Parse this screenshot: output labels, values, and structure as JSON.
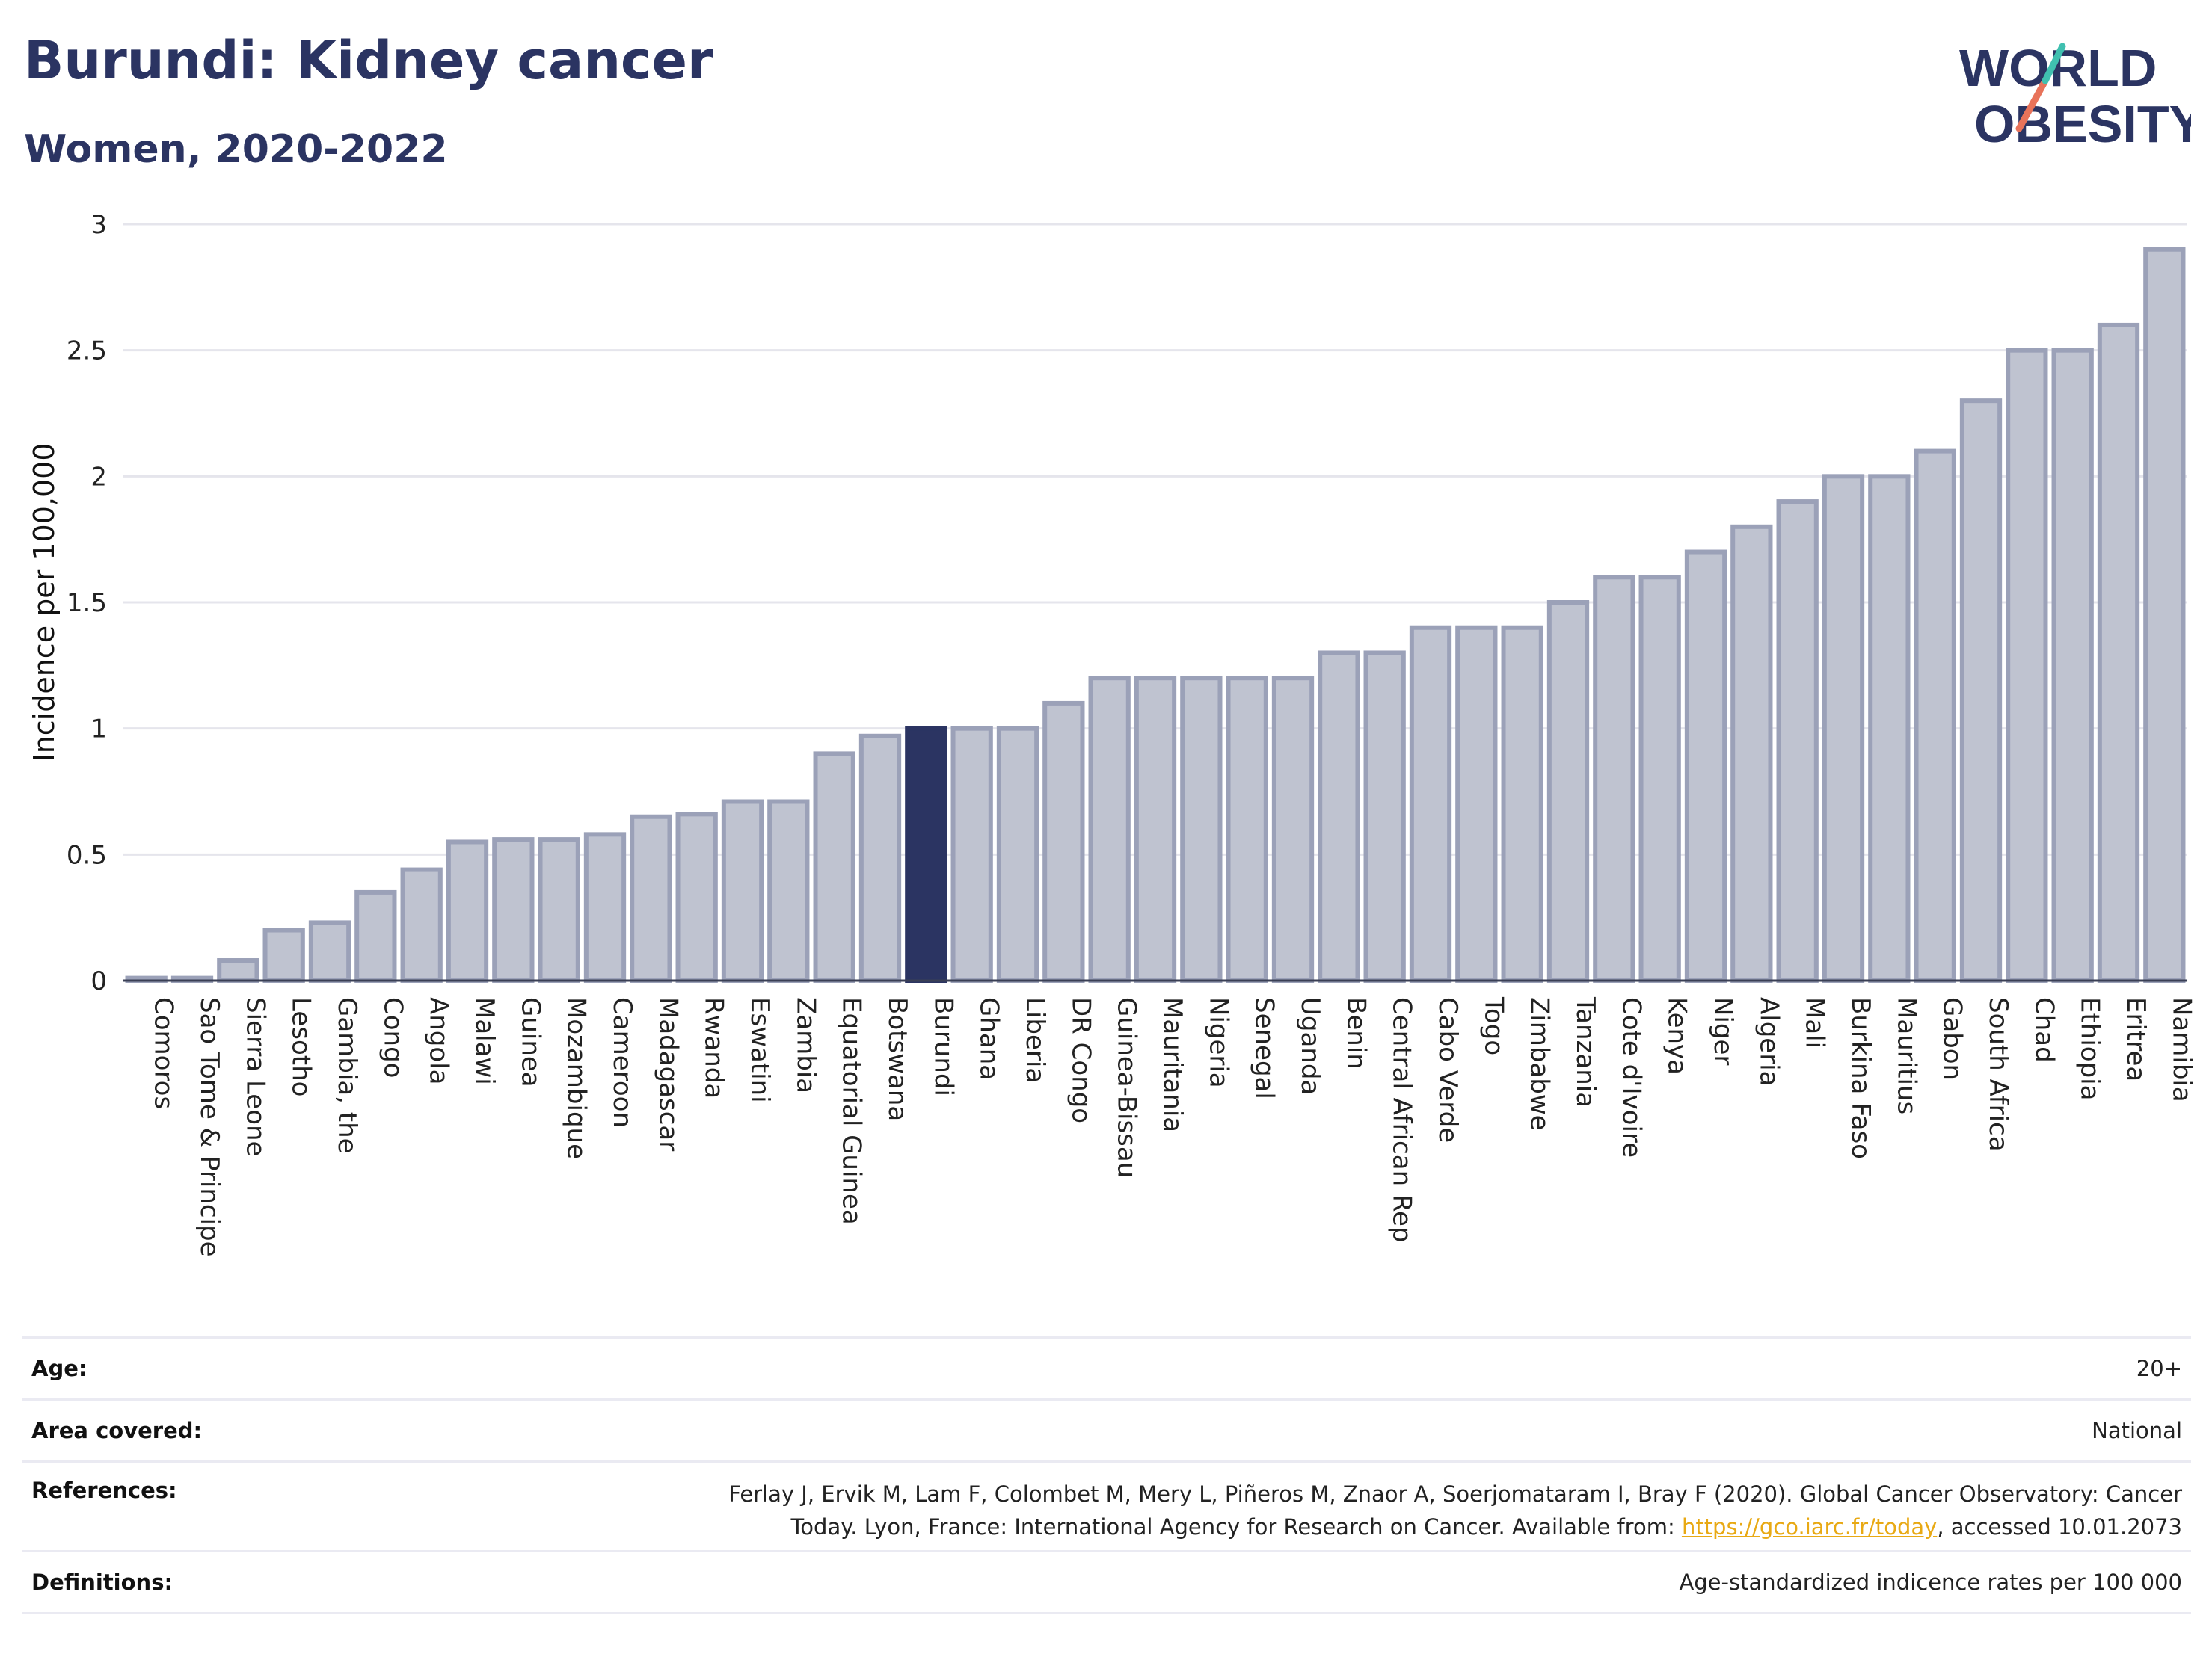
{
  "header": {
    "title": "Burundi: Kidney cancer",
    "subtitle": "Women, 2020-2022"
  },
  "logo": {
    "line1": "WORLD",
    "line2": "OBESITY",
    "stripe_colors": [
      "#40c0b0",
      "#e8735a"
    ]
  },
  "colors": {
    "bar_fill": "#bfc3d0",
    "bar_stroke": "#9ba1b8",
    "highlight_fill": "#2b3462",
    "grid": "#e5e5ec",
    "title": "#2b3462",
    "link": "#e8a914"
  },
  "chart_data": {
    "type": "bar",
    "title": "Burundi: Kidney cancer",
    "subtitle": "Women, 2020-2022",
    "ylabel": "Incidence per 100,000",
    "xlabel": "",
    "ylim": [
      0,
      3
    ],
    "yticks": [
      0,
      0.5,
      1,
      1.5,
      2,
      2.5,
      3
    ],
    "ytick_labels": [
      "0",
      "0.5",
      "1",
      "1.5",
      "2",
      "2.5",
      "3"
    ],
    "grid": true,
    "highlight": "Burundi",
    "categories": [
      "Comoros",
      "Sao Tome & Principe",
      "Sierra Leone",
      "Lesotho",
      "Gambia, the",
      "Congo",
      "Angola",
      "Malawi",
      "Guinea",
      "Mozambique",
      "Cameroon",
      "Madagascar",
      "Rwanda",
      "Eswatini",
      "Zambia",
      "Equatorial Guinea",
      "Botswana",
      "Burundi",
      "Ghana",
      "Liberia",
      "DR Congo",
      "Guinea-Bissau",
      "Mauritania",
      "Nigeria",
      "Senegal",
      "Uganda",
      "Benin",
      "Central African Rep",
      "Cabo Verde",
      "Togo",
      "Zimbabwe",
      "Tanzania",
      "Cote d'Ivoire",
      "Kenya",
      "Niger",
      "Algeria",
      "Mali",
      "Burkina Faso",
      "Mauritius",
      "Gabon",
      "South Africa",
      "Chad",
      "Ethiopia",
      "Eritrea",
      "Namibia"
    ],
    "values": [
      0.01,
      0.01,
      0.08,
      0.2,
      0.23,
      0.35,
      0.44,
      0.55,
      0.56,
      0.56,
      0.58,
      0.65,
      0.66,
      0.71,
      0.71,
      0.9,
      0.97,
      1.0,
      1.0,
      1.0,
      1.1,
      1.2,
      1.2,
      1.2,
      1.2,
      1.2,
      1.3,
      1.3,
      1.4,
      1.4,
      1.4,
      1.5,
      1.6,
      1.6,
      1.7,
      1.8,
      1.9,
      2.0,
      2.0,
      2.1,
      2.3,
      2.5,
      2.5,
      2.6,
      2.9
    ]
  },
  "info": {
    "age_label": "Age:",
    "age_value": "20+",
    "area_label": "Area covered:",
    "area_value": "National",
    "refs_label": "References:",
    "refs_line1": "Ferlay J, Ervik M, Lam F, Colombet M, Mery L, Piñeros M, Znaor A, Soerjomataram I, Bray F (2020). Global Cancer Observatory: Cancer",
    "refs_line2_pre": "Today. Lyon, France: International Agency for Research on Cancer. Available from: ",
    "refs_link": "https://gco.iarc.fr/today",
    "refs_line2_post": ", accessed 10.01.2073",
    "defs_label": "Definitions:",
    "defs_value": "Age-standardized indicence rates per 100 000"
  }
}
